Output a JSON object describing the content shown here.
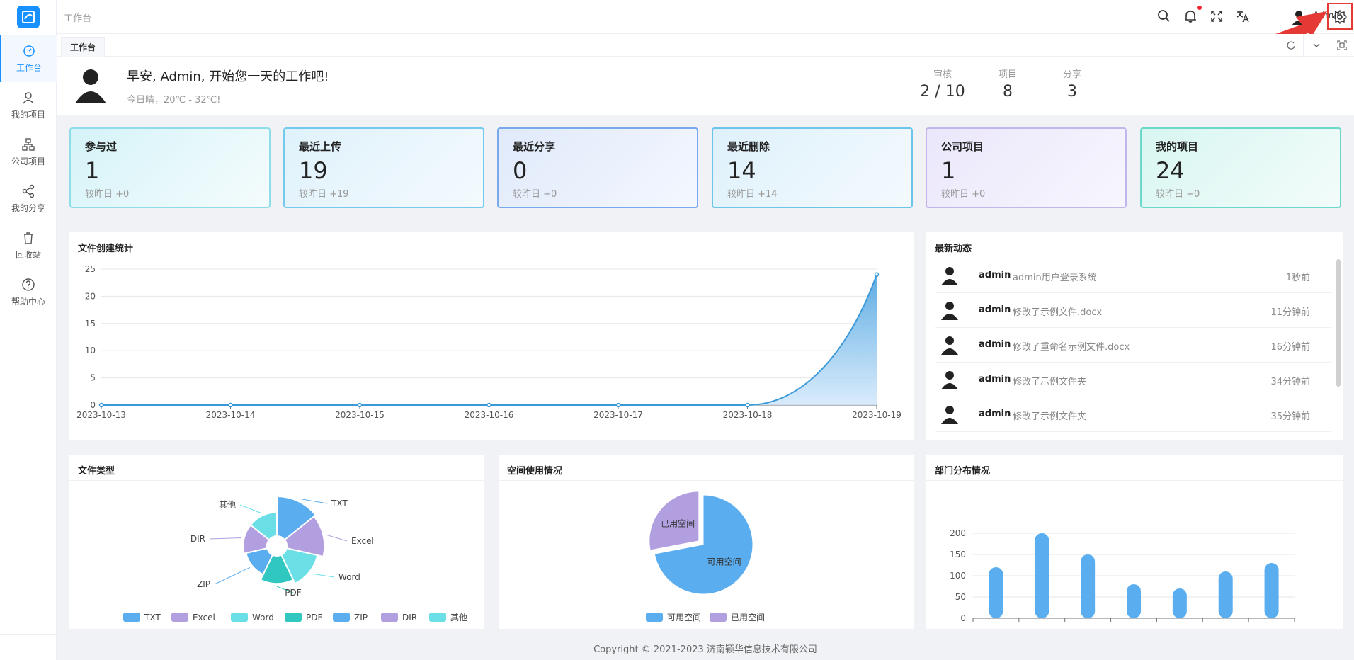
{
  "sidebar": {
    "items": [
      {
        "label": "工作台",
        "icon": "dashboard-icon"
      },
      {
        "label": "我的项目",
        "icon": "user-icon"
      },
      {
        "label": "公司项目",
        "icon": "org-icon"
      },
      {
        "label": "我的分享",
        "icon": "share-icon"
      },
      {
        "label": "回收站",
        "icon": "trash-icon"
      },
      {
        "label": "帮助中心",
        "icon": "help-icon"
      }
    ]
  },
  "header": {
    "breadcrumb": "工作台",
    "user_name": "Admin"
  },
  "tabs": [
    {
      "label": "工作台"
    }
  ],
  "welcome": {
    "greeting": "早安, Admin, 开始您一天的工作吧!",
    "weather": "今日晴，20℃ - 32℃!",
    "stats": [
      {
        "label": "审核",
        "value": "2 / 10"
      },
      {
        "label": "项目",
        "value": "8"
      },
      {
        "label": "分享",
        "value": "3"
      }
    ]
  },
  "kpis": [
    {
      "title": "参与过",
      "value": "1",
      "delta": "较昨日 +0",
      "color": "#6ad4e8"
    },
    {
      "title": "最近上传",
      "value": "19",
      "delta": "较昨日 +19",
      "color": "#5bc0eb"
    },
    {
      "title": "最近分享",
      "value": "0",
      "delta": "较昨日 +0",
      "color": "#6fa4ea"
    },
    {
      "title": "最近删除",
      "value": "14",
      "delta": "较昨日 +14",
      "color": "#4fbde8"
    },
    {
      "title": "公司项目",
      "value": "1",
      "delta": "较昨日 +0",
      "color": "#b7a8ea"
    },
    {
      "title": "我的项目",
      "value": "24",
      "delta": "较昨日 +0",
      "color": "#4dd2c0"
    }
  ],
  "panels": {
    "file_stats": "文件创建统计",
    "activity": "最新动态",
    "file_types": "文件类型",
    "space": "空间使用情况",
    "dept": "部门分布情况"
  },
  "activity": [
    {
      "user": "admin",
      "message": "admin用户登录系统",
      "time": "1秒前"
    },
    {
      "user": "admin",
      "message": "修改了示例文件.docx",
      "time": "11分钟前"
    },
    {
      "user": "admin",
      "message": "修改了重命名示例文件.docx",
      "time": "16分钟前"
    },
    {
      "user": "admin",
      "message": "修改了示例文件夹",
      "time": "34分钟前"
    },
    {
      "user": "admin",
      "message": "修改了示例文件夹",
      "time": "35分钟前"
    }
  ],
  "footer": "Copyright © 2021-2023 济南颖华信息技术有限公司",
  "chart_data": [
    {
      "type": "area",
      "x": [
        "2023-10-13",
        "2023-10-14",
        "2023-10-15",
        "2023-10-16",
        "2023-10-17",
        "2023-10-18",
        "2023-10-19"
      ],
      "values": [
        0,
        0,
        0,
        0,
        0,
        0,
        24
      ],
      "yticks": [
        0,
        5,
        10,
        15,
        20,
        25
      ],
      "ylim": [
        0,
        25
      ],
      "color": "#4ba3e0"
    },
    {
      "type": "pie",
      "subtype": "rose",
      "labels": [
        "TXT",
        "Excel",
        "Word",
        "PDF",
        "ZIP",
        "DIR",
        "其他"
      ],
      "values": [
        10,
        9.5,
        8,
        7,
        5.5,
        6,
        6
      ],
      "colors": [
        "#5aaeef",
        "#b19fe0",
        "#6adfe6",
        "#2fc7c0",
        "#5aaeef",
        "#b19fe0",
        "#6adfe6"
      ],
      "legend": "bottom"
    },
    {
      "type": "pie",
      "labels": [
        "可用空间",
        "已用空间"
      ],
      "values": [
        72,
        28
      ],
      "colors": [
        "#5aaeef",
        "#b19fe0"
      ],
      "legend": "bottom"
    },
    {
      "type": "bar",
      "values": [
        120,
        200,
        150,
        80,
        70,
        110,
        130
      ],
      "yticks": [
        0,
        50,
        100,
        150,
        200
      ],
      "ylim": [
        0,
        200
      ],
      "color": "#5aaeef"
    }
  ]
}
